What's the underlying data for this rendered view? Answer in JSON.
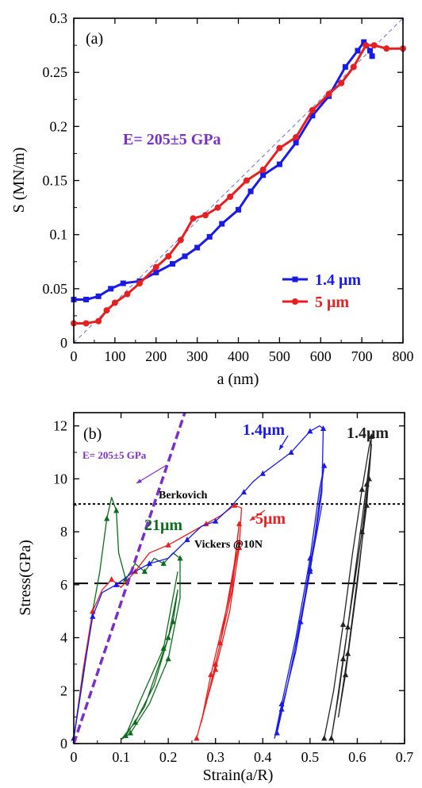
{
  "chart_data": [
    {
      "type": "line",
      "panel_label": "(a)",
      "xlabel": "a (nm)",
      "ylabel": "S (MN/m)",
      "xlim": [
        0,
        800
      ],
      "ylim": [
        0,
        0.3
      ],
      "xticks": [
        0,
        100,
        200,
        300,
        400,
        500,
        600,
        700,
        800
      ],
      "yticks": [
        0,
        0.05,
        0.1,
        0.15,
        0.2,
        0.25,
        0.3
      ],
      "annotation": {
        "text": "E= 205±5 GPa",
        "color": "#7a2fc9"
      },
      "legend_position": "bottom-right",
      "reference_line": {
        "points": [
          [
            0,
            0
          ],
          [
            800,
            0.305
          ]
        ],
        "color": "#6a6ad8"
      },
      "series": [
        {
          "name": "1.4 μm",
          "color": "#1a1ae6",
          "marker": "square",
          "points": [
            [
              0,
              0.04
            ],
            [
              30,
              0.04
            ],
            [
              60,
              0.043
            ],
            [
              90,
              0.05
            ],
            [
              120,
              0.055
            ],
            [
              160,
              0.057
            ],
            [
              200,
              0.065
            ],
            [
              240,
              0.073
            ],
            [
              270,
              0.08
            ],
            [
              300,
              0.088
            ],
            [
              330,
              0.098
            ],
            [
              360,
              0.11
            ],
            [
              400,
              0.123
            ],
            [
              430,
              0.14
            ],
            [
              460,
              0.155
            ],
            [
              500,
              0.165
            ],
            [
              540,
              0.185
            ],
            [
              580,
              0.21
            ],
            [
              620,
              0.228
            ],
            [
              660,
              0.255
            ],
            [
              690,
              0.27
            ],
            [
              705,
              0.278
            ],
            [
              720,
              0.27
            ],
            [
              725,
              0.265
            ]
          ]
        },
        {
          "name": "5 μm",
          "color": "#e62020",
          "marker": "circle",
          "points": [
            [
              0,
              0.018
            ],
            [
              30,
              0.018
            ],
            [
              60,
              0.02
            ],
            [
              80,
              0.03
            ],
            [
              100,
              0.037
            ],
            [
              130,
              0.045
            ],
            [
              160,
              0.055
            ],
            [
              200,
              0.07
            ],
            [
              230,
              0.08
            ],
            [
              260,
              0.095
            ],
            [
              290,
              0.115
            ],
            [
              320,
              0.118
            ],
            [
              350,
              0.125
            ],
            [
              380,
              0.135
            ],
            [
              420,
              0.15
            ],
            [
              460,
              0.16
            ],
            [
              500,
              0.18
            ],
            [
              540,
              0.19
            ],
            [
              580,
              0.215
            ],
            [
              620,
              0.23
            ],
            [
              650,
              0.24
            ],
            [
              680,
              0.255
            ],
            [
              710,
              0.275
            ],
            [
              730,
              0.275
            ],
            [
              760,
              0.272
            ],
            [
              800,
              0.272
            ]
          ]
        }
      ]
    },
    {
      "type": "line",
      "panel_label": "(b)",
      "xlabel": "Strain(a/R)",
      "ylabel": "Stress(GPa)",
      "xlim": [
        0,
        0.7
      ],
      "ylim": [
        0,
        12.5
      ],
      "xticks": [
        0,
        0.1,
        0.2,
        0.3,
        0.4,
        0.5,
        0.6,
        0.7
      ],
      "yticks": [
        0,
        2,
        4,
        6,
        8,
        10,
        12
      ],
      "reference_lines": [
        {
          "label": "Berkovich",
          "y": 9.05,
          "style": "dotted"
        },
        {
          "label": "Vickers @10N",
          "y": 6.05,
          "style": "dashed"
        }
      ],
      "modulus_line": {
        "label": "E= 205±5 GPa",
        "points": [
          [
            0,
            0
          ],
          [
            0.235,
            12.5
          ]
        ],
        "color": "#7a2fc9"
      },
      "series": [
        {
          "name": "21μm",
          "color": "#0f6b1e",
          "points": [
            [
              0,
              0.2
            ],
            [
              0.02,
              2.5
            ],
            [
              0.04,
              5.0
            ],
            [
              0.055,
              6.5
            ],
            [
              0.07,
              8.5
            ],
            [
              0.08,
              9.3
            ],
            [
              0.09,
              8.8
            ],
            [
              0.095,
              7.2
            ],
            [
              0.11,
              6.2
            ],
            [
              0.13,
              6.8
            ],
            [
              0.15,
              6.5
            ],
            [
              0.17,
              7.0
            ],
            [
              0.19,
              6.8
            ],
            [
              0.21,
              7.2
            ],
            [
              0.225,
              7.0
            ],
            [
              0.225,
              5.5
            ],
            [
              0.2,
              3.2
            ],
            [
              0.16,
              1.5
            ],
            [
              0.12,
              0.4
            ],
            [
              0.1,
              0.15
            ],
            [
              0.13,
              0.8
            ],
            [
              0.17,
              2.2
            ],
            [
              0.21,
              4.6
            ],
            [
              0.22,
              5.8
            ],
            [
              0.2,
              4.0
            ],
            [
              0.15,
              1.4
            ],
            [
              0.11,
              0.3
            ],
            [
              0.14,
              1.6
            ],
            [
              0.19,
              3.6
            ],
            [
              0.22,
              6.5
            ]
          ]
        },
        {
          "name": "5μm",
          "color": "#e62020",
          "points": [
            [
              0,
              0.2
            ],
            [
              0.02,
              2.8
            ],
            [
              0.04,
              5.0
            ],
            [
              0.06,
              5.8
            ],
            [
              0.08,
              6.2
            ],
            [
              0.1,
              5.9
            ],
            [
              0.13,
              6.5
            ],
            [
              0.16,
              7.2
            ],
            [
              0.2,
              7.5
            ],
            [
              0.24,
              7.9
            ],
            [
              0.28,
              8.3
            ],
            [
              0.31,
              8.6
            ],
            [
              0.34,
              9.0
            ],
            [
              0.355,
              8.9
            ],
            [
              0.35,
              7.4
            ],
            [
              0.33,
              5.0
            ],
            [
              0.3,
              2.8
            ],
            [
              0.275,
              1.2
            ],
            [
              0.26,
              0.2
            ],
            [
              0.28,
              1.5
            ],
            [
              0.31,
              3.8
            ],
            [
              0.34,
              6.8
            ],
            [
              0.35,
              8.3
            ],
            [
              0.335,
              5.8
            ],
            [
              0.3,
              3.0
            ],
            [
              0.27,
              0.8
            ],
            [
              0.29,
              2.6
            ],
            [
              0.33,
              5.6
            ],
            [
              0.35,
              7.6
            ]
          ]
        },
        {
          "name": "1.4μm",
          "color": "#1a1ae6",
          "points": [
            [
              0,
              0.2
            ],
            [
              0.02,
              2.6
            ],
            [
              0.04,
              4.8
            ],
            [
              0.06,
              5.7
            ],
            [
              0.09,
              6.0
            ],
            [
              0.12,
              6.4
            ],
            [
              0.16,
              6.8
            ],
            [
              0.2,
              7.0
            ],
            [
              0.24,
              7.7
            ],
            [
              0.27,
              8.2
            ],
            [
              0.3,
              8.4
            ],
            [
              0.33,
              8.9
            ],
            [
              0.36,
              9.5
            ],
            [
              0.38,
              9.9
            ],
            [
              0.4,
              10.2
            ],
            [
              0.43,
              10.6
            ],
            [
              0.46,
              11.0
            ],
            [
              0.48,
              11.4
            ],
            [
              0.5,
              11.8
            ],
            [
              0.52,
              12.0
            ],
            [
              0.528,
              11.9
            ],
            [
              0.525,
              9.5
            ],
            [
              0.5,
              6.5
            ],
            [
              0.47,
              3.5
            ],
            [
              0.44,
              1.3
            ],
            [
              0.425,
              0.2
            ],
            [
              0.44,
              1.5
            ],
            [
              0.47,
              4.0
            ],
            [
              0.5,
              7.0
            ],
            [
              0.52,
              9.6
            ],
            [
              0.53,
              10.5
            ],
            [
              0.51,
              7.8
            ],
            [
              0.48,
              4.6
            ],
            [
              0.45,
              2.0
            ],
            [
              0.43,
              0.4
            ],
            [
              0.46,
              2.8
            ],
            [
              0.5,
              6.6
            ],
            [
              0.525,
              9.0
            ]
          ]
        },
        {
          "name": "1.4μm",
          "color": "#222222",
          "points": [
            [
              0.53,
              0.2
            ],
            [
              0.55,
              2.0
            ],
            [
              0.57,
              4.5
            ],
            [
              0.59,
              7.2
            ],
            [
              0.61,
              9.6
            ],
            [
              0.625,
              11.2
            ],
            [
              0.63,
              11.6
            ],
            [
              0.625,
              10.2
            ],
            [
              0.61,
              8.0
            ],
            [
              0.59,
              5.6
            ],
            [
              0.57,
              3.2
            ],
            [
              0.555,
              1.3
            ],
            [
              0.545,
              0.2
            ],
            [
              0.56,
              1.8
            ],
            [
              0.58,
              4.4
            ],
            [
              0.6,
              7.1
            ],
            [
              0.62,
              9.8
            ],
            [
              0.63,
              11.3
            ],
            [
              0.62,
              9.0
            ],
            [
              0.6,
              6.2
            ],
            [
              0.58,
              3.4
            ],
            [
              0.56,
              1.0
            ],
            [
              0.575,
              2.6
            ],
            [
              0.6,
              6.0
            ],
            [
              0.625,
              10.0
            ]
          ]
        }
      ]
    }
  ]
}
